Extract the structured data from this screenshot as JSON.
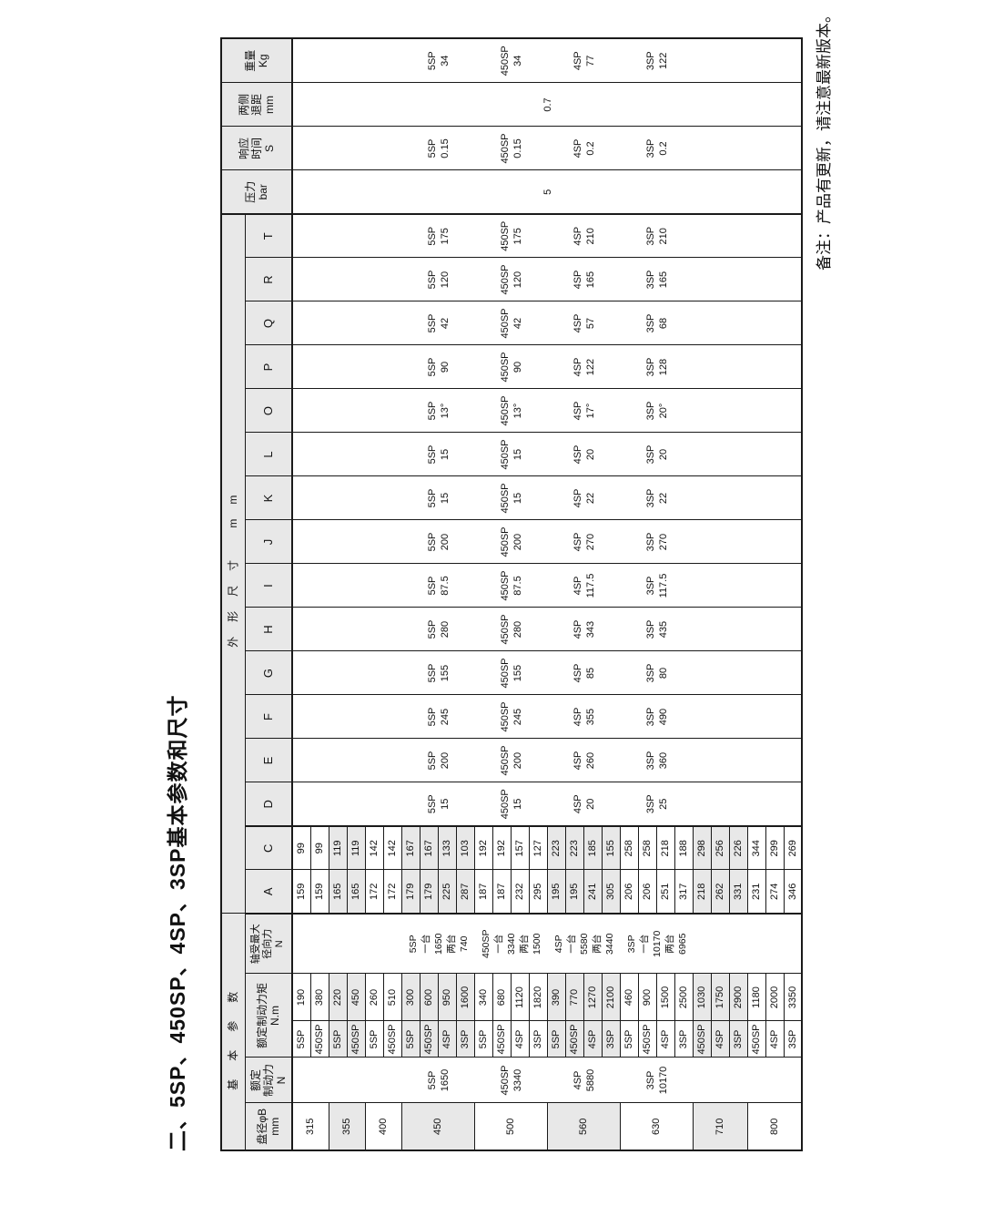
{
  "title": "二、5SP、450SP、4SP、3SP基本参数和尺寸",
  "note": "备注：产品有更新，请注意最新版本。",
  "colors": {
    "header_bg": "#e8e8e8",
    "row_shade": "#e8e8e8",
    "border": "#1a1a1a",
    "text": "#111111"
  },
  "table": {
    "headers": {
      "group_basic": "基本参数",
      "group_dims": "外形尺寸 mm",
      "diameter": [
        "盘径φB",
        "mm"
      ],
      "force": [
        "额定",
        "制动力",
        "N"
      ],
      "torque": [
        "额定制动力矩",
        "N.m"
      ],
      "axial": [
        "轴受最大",
        "径向力",
        "N"
      ],
      "pressure": [
        "压力",
        "bar"
      ],
      "response": [
        "响应",
        "时间",
        "S"
      ],
      "clearance": [
        "两侧",
        "退距",
        "mm"
      ],
      "weight": [
        "重量",
        "Kg"
      ]
    },
    "dim_letters": [
      "A",
      "C",
      "D",
      "E",
      "F",
      "G",
      "H",
      "I",
      "J",
      "K",
      "L",
      "O",
      "P",
      "Q",
      "R",
      "T"
    ],
    "merged_dim_letters": [
      "D",
      "E",
      "F",
      "G",
      "H",
      "I",
      "J",
      "K",
      "L",
      "O",
      "P",
      "Q",
      "R",
      "T"
    ],
    "groups": [
      {
        "diameter": "315",
        "shaded": false,
        "rows": [
          {
            "model": "5SP",
            "torque": "190",
            "A": "159",
            "C": "99"
          },
          {
            "model": "450SP",
            "torque": "380",
            "A": "159",
            "C": "99"
          }
        ]
      },
      {
        "diameter": "355",
        "shaded": true,
        "rows": [
          {
            "model": "5SP",
            "torque": "220",
            "A": "165",
            "C": "119"
          },
          {
            "model": "450SP",
            "torque": "450",
            "A": "165",
            "C": "119"
          }
        ]
      },
      {
        "diameter": "400",
        "shaded": false,
        "rows": [
          {
            "model": "5SP",
            "torque": "260",
            "A": "172",
            "C": "142"
          },
          {
            "model": "450SP",
            "torque": "510",
            "A": "172",
            "C": "142"
          }
        ]
      },
      {
        "diameter": "450",
        "shaded": true,
        "rows": [
          {
            "model": "5SP",
            "torque": "300",
            "A": "179",
            "C": "167"
          },
          {
            "model": "450SP",
            "torque": "600",
            "A": "179",
            "C": "167"
          },
          {
            "model": "4SP",
            "torque": "950",
            "A": "225",
            "C": "133"
          },
          {
            "model": "3SP",
            "torque": "1600",
            "A": "287",
            "C": "103"
          }
        ]
      },
      {
        "diameter": "500",
        "shaded": false,
        "rows": [
          {
            "model": "5SP",
            "torque": "340",
            "A": "187",
            "C": "192"
          },
          {
            "model": "450SP",
            "torque": "680",
            "A": "187",
            "C": "192"
          },
          {
            "model": "4SP",
            "torque": "1120",
            "A": "232",
            "C": "157"
          },
          {
            "model": "3SP",
            "torque": "1820",
            "A": "295",
            "C": "127"
          }
        ]
      },
      {
        "diameter": "560",
        "shaded": true,
        "rows": [
          {
            "model": "5SP",
            "torque": "390",
            "A": "195",
            "C": "223"
          },
          {
            "model": "450SP",
            "torque": "770",
            "A": "195",
            "C": "223"
          },
          {
            "model": "4SP",
            "torque": "1270",
            "A": "241",
            "C": "185"
          },
          {
            "model": "3SP",
            "torque": "2100",
            "A": "305",
            "C": "155"
          }
        ]
      },
      {
        "diameter": "630",
        "shaded": false,
        "rows": [
          {
            "model": "5SP",
            "torque": "460",
            "A": "206",
            "C": "258"
          },
          {
            "model": "450SP",
            "torque": "900",
            "A": "206",
            "C": "258"
          },
          {
            "model": "4SP",
            "torque": "1500",
            "A": "251",
            "C": "218"
          },
          {
            "model": "3SP",
            "torque": "2500",
            "A": "317",
            "C": "188"
          }
        ]
      },
      {
        "diameter": "710",
        "shaded": true,
        "rows": [
          {
            "model": "450SP",
            "torque": "1030",
            "A": "218",
            "C": "298"
          },
          {
            "model": "4SP",
            "torque": "1750",
            "A": "262",
            "C": "256"
          },
          {
            "model": "3SP",
            "torque": "2900",
            "A": "331",
            "C": "226"
          }
        ]
      },
      {
        "diameter": "800",
        "shaded": false,
        "rows": [
          {
            "model": "450SP",
            "torque": "1180",
            "A": "231",
            "C": "344"
          },
          {
            "model": "4SP",
            "torque": "2000",
            "A": "274",
            "C": "299"
          },
          {
            "model": "3SP",
            "torque": "3350",
            "A": "346",
            "C": "269"
          }
        ]
      }
    ],
    "model_specs": [
      {
        "model": "5SP",
        "force": "1650",
        "axial": [
          "一台",
          "1650",
          "两台",
          "740"
        ],
        "dims": {
          "D": "15",
          "E": "200",
          "F": "245",
          "G": "155",
          "H": "280",
          "I": "87.5",
          "J": "200",
          "K": "15",
          "L": "15",
          "O": "13°",
          "P": "90",
          "Q": "42",
          "R": "120",
          "T": "175"
        },
        "response": "0.15",
        "weight": "34"
      },
      {
        "model": "450SP",
        "force": "3340",
        "axial": [
          "一台",
          "3340",
          "两台",
          "1500"
        ],
        "dims": {
          "D": "15",
          "E": "200",
          "F": "245",
          "G": "155",
          "H": "280",
          "I": "87.5",
          "J": "200",
          "K": "15",
          "L": "15",
          "O": "13°",
          "P": "90",
          "Q": "42",
          "R": "120",
          "T": "175"
        },
        "response": "0.15",
        "weight": "34"
      },
      {
        "model": "4SP",
        "force": "5880",
        "axial": [
          "一台",
          "5580",
          "两台",
          "3440"
        ],
        "dims": {
          "D": "20",
          "E": "260",
          "F": "355",
          "G": "85",
          "H": "343",
          "I": "117.5",
          "J": "270",
          "K": "22",
          "L": "20",
          "O": "17°",
          "P": "122",
          "Q": "57",
          "R": "165",
          "T": "210"
        },
        "response": "0.2",
        "weight": "77"
      },
      {
        "model": "3SP",
        "force": "10170",
        "axial": [
          "一台",
          "10170",
          "两台",
          "6965"
        ],
        "dims": {
          "D": "25",
          "E": "360",
          "F": "490",
          "G": "80",
          "H": "435",
          "I": "117.5",
          "J": "270",
          "K": "22",
          "L": "20",
          "O": "20°",
          "P": "128",
          "Q": "68",
          "R": "165",
          "T": "210"
        },
        "response": "0.2",
        "weight": "122"
      }
    ],
    "pressure": "5",
    "clearance": "0.7"
  }
}
